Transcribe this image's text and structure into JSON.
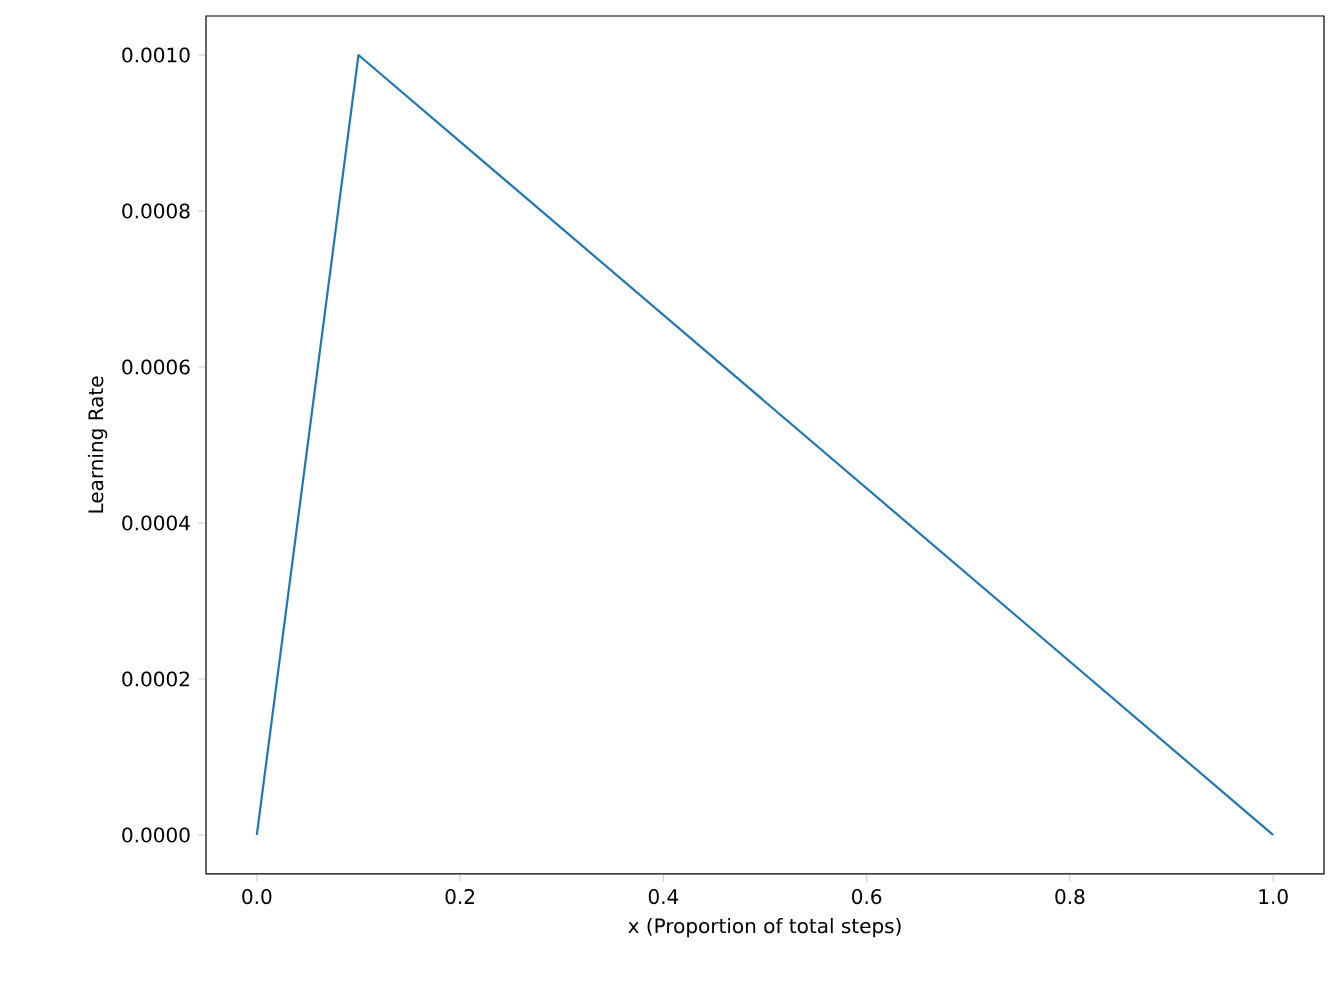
{
  "chart_data": {
    "type": "line",
    "xlabel": "x (Proportion of total steps)",
    "ylabel": "Learning Rate",
    "x": [
      0,
      0.1,
      1.0
    ],
    "series": [
      {
        "color": "#1f77b4",
        "values": [
          0,
          0.001,
          0
        ]
      }
    ],
    "xlim": [
      -0.05,
      1.05
    ],
    "ylim": [
      -5e-05,
      0.00105
    ],
    "xticks": [
      {
        "value": 0,
        "label": "0.0"
      },
      {
        "value": 0.2,
        "label": "0.2"
      },
      {
        "value": 0.4,
        "label": "0.4"
      },
      {
        "value": 0.6,
        "label": "0.6"
      },
      {
        "value": 0.8,
        "label": "0.8"
      },
      {
        "value": 1.0,
        "label": "1.0"
      }
    ],
    "yticks": [
      {
        "value": 0,
        "label": "0.0000"
      },
      {
        "value": 0.0002,
        "label": "0.0002"
      },
      {
        "value": 0.0004,
        "label": "0.0004"
      },
      {
        "value": 0.0006,
        "label": "0.0006"
      },
      {
        "value": 0.0008,
        "label": "0.0008"
      },
      {
        "value": 0.001,
        "label": "0.0010"
      }
    ]
  }
}
